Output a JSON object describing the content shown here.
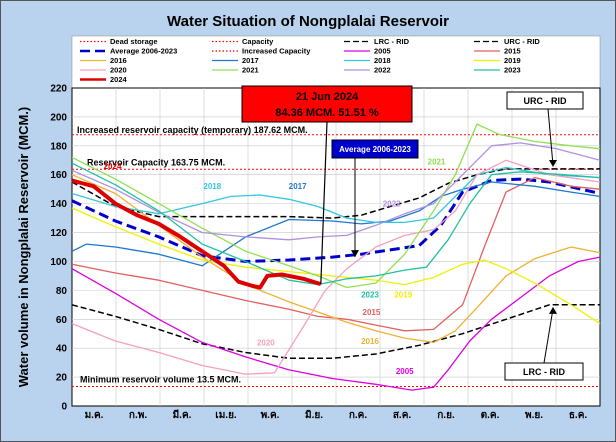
{
  "chart_data": {
    "type": "line",
    "title": "Water Situation of Nongplalai Reservoir",
    "xlabel": "",
    "ylabel": "Water volume in Nongplalai Reservoir (MCM.)",
    "ylim": [
      0,
      220
    ],
    "yticks": [
      0,
      20,
      40,
      60,
      80,
      100,
      120,
      140,
      160,
      180,
      200,
      220
    ],
    "x_domain": [
      0,
      365
    ],
    "month_ticks": [
      "ม.ค.",
      "ก.พ.",
      "มี.ค.",
      "เม.ย.",
      "พ.ค.",
      "มิ.ย.",
      "ก.ค.",
      "ส.ค.",
      "ก.ย.",
      "ต.ค.",
      "พ.ย.",
      "ธ.ค."
    ],
    "grid": true,
    "legend_position": "top",
    "legend": [
      {
        "label": "Dead storage",
        "color": "#ff0000",
        "dash": "dot"
      },
      {
        "label": "Capacity",
        "color": "#ff0000",
        "dash": "dot"
      },
      {
        "label": "LRC - RID",
        "color": "#000000",
        "dash": "dash"
      },
      {
        "label": "URC - RID",
        "color": "#000000",
        "dash": "dash"
      },
      {
        "label": "Average 2006-2023",
        "color": "#0000cc",
        "dash": "longdash"
      },
      {
        "label": "Increased Capacity",
        "color": "#ff0000",
        "dash": "dot"
      },
      {
        "label": "2005",
        "color": "#dd00dd",
        "dash": "solid"
      },
      {
        "label": "2015",
        "color": "#e06060",
        "dash": "solid"
      },
      {
        "label": "2016",
        "color": "#f0b030",
        "dash": "solid"
      },
      {
        "label": "2017",
        "color": "#1f78d0",
        "dash": "solid"
      },
      {
        "label": "2018",
        "color": "#30c8e0",
        "dash": "solid"
      },
      {
        "label": "2019",
        "color": "#f0f000",
        "dash": "solid"
      },
      {
        "label": "2020",
        "color": "#f4a0c0",
        "dash": "solid"
      },
      {
        "label": "2021",
        "color": "#90e050",
        "dash": "solid"
      },
      {
        "label": "2022",
        "color": "#b090e0",
        "dash": "solid"
      },
      {
        "label": "2023",
        "color": "#20c0a0",
        "dash": "solid"
      },
      {
        "label": "2024",
        "color": "#dd0000",
        "dash": "solid"
      }
    ],
    "reference_lines": [
      {
        "name": "dead_storage",
        "value": 13.5,
        "color": "#ff0000",
        "label": "Minimum reservoir volume 13.5 MCM."
      },
      {
        "name": "capacity",
        "value": 163.75,
        "color": "#ff0000",
        "label": "Reservoir Capacity 163.75 MCM."
      },
      {
        "name": "increased_capacity",
        "value": 187.62,
        "color": "#ff0000",
        "label": "Increased reservoir capacity (temporary) 187.62 MCM."
      }
    ],
    "series": [
      {
        "name": "URC - RID",
        "color": "#000000",
        "dash": "dash",
        "width": 1.5,
        "points": [
          [
            0,
            155
          ],
          [
            30,
            138
          ],
          [
            60,
            131
          ],
          [
            90,
            131
          ],
          [
            120,
            131
          ],
          [
            150,
            131
          ],
          [
            180,
            130
          ],
          [
            200,
            132
          ],
          [
            220,
            138
          ],
          [
            240,
            144
          ],
          [
            260,
            154
          ],
          [
            280,
            160
          ],
          [
            300,
            164
          ],
          [
            330,
            164
          ],
          [
            365,
            164
          ]
        ]
      },
      {
        "name": "LRC - RID",
        "color": "#000000",
        "dash": "dash",
        "width": 1.5,
        "points": [
          [
            0,
            70
          ],
          [
            30,
            62
          ],
          [
            60,
            53
          ],
          [
            90,
            43
          ],
          [
            120,
            37
          ],
          [
            150,
            33
          ],
          [
            180,
            33
          ],
          [
            210,
            36
          ],
          [
            240,
            42
          ],
          [
            270,
            50
          ],
          [
            300,
            60
          ],
          [
            330,
            70
          ],
          [
            365,
            70
          ]
        ]
      },
      {
        "name": "Average 2006-2023",
        "color": "#0000cc",
        "dash": "longdash",
        "width": 3,
        "points": [
          [
            0,
            142
          ],
          [
            30,
            128
          ],
          [
            60,
            117
          ],
          [
            90,
            104
          ],
          [
            120,
            100
          ],
          [
            150,
            101
          ],
          [
            180,
            103
          ],
          [
            200,
            105
          ],
          [
            220,
            108
          ],
          [
            240,
            111
          ],
          [
            255,
            125
          ],
          [
            270,
            148
          ],
          [
            290,
            156
          ],
          [
            310,
            157
          ],
          [
            330,
            155
          ],
          [
            365,
            147
          ]
        ]
      },
      {
        "name": "2005",
        "color": "#dd00dd",
        "dash": "solid",
        "width": 1.3,
        "points": [
          [
            0,
            95
          ],
          [
            30,
            78
          ],
          [
            60,
            60
          ],
          [
            90,
            44
          ],
          [
            120,
            34
          ],
          [
            150,
            25
          ],
          [
            180,
            19
          ],
          [
            210,
            15
          ],
          [
            235,
            11
          ],
          [
            250,
            13
          ],
          [
            260,
            25
          ],
          [
            275,
            45
          ],
          [
            290,
            60
          ],
          [
            310,
            75
          ],
          [
            330,
            90
          ],
          [
            350,
            100
          ],
          [
            365,
            103
          ]
        ]
      },
      {
        "name": "2015",
        "color": "#e06060",
        "dash": "solid",
        "width": 1.3,
        "points": [
          [
            0,
            98
          ],
          [
            30,
            92
          ],
          [
            60,
            87
          ],
          [
            90,
            80
          ],
          [
            120,
            73
          ],
          [
            150,
            67
          ],
          [
            170,
            62
          ],
          [
            190,
            60
          ],
          [
            210,
            56
          ],
          [
            230,
            52
          ],
          [
            250,
            53
          ],
          [
            270,
            70
          ],
          [
            285,
            110
          ],
          [
            300,
            148
          ],
          [
            320,
            158
          ],
          [
            345,
            152
          ],
          [
            365,
            150
          ]
        ]
      },
      {
        "name": "2016",
        "color": "#f0b030",
        "dash": "solid",
        "width": 1.3,
        "points": [
          [
            0,
            160
          ],
          [
            30,
            147
          ],
          [
            60,
            125
          ],
          [
            90,
            103
          ],
          [
            120,
            84
          ],
          [
            150,
            72
          ],
          [
            170,
            65
          ],
          [
            190,
            58
          ],
          [
            210,
            52
          ],
          [
            230,
            47
          ],
          [
            250,
            44
          ],
          [
            265,
            52
          ],
          [
            280,
            68
          ],
          [
            300,
            90
          ],
          [
            320,
            102
          ],
          [
            345,
            110
          ],
          [
            365,
            106
          ]
        ]
      },
      {
        "name": "2017",
        "color": "#1f78d0",
        "dash": "solid",
        "width": 1.3,
        "points": [
          [
            0,
            107
          ],
          [
            10,
            112
          ],
          [
            30,
            110
          ],
          [
            60,
            105
          ],
          [
            90,
            97
          ],
          [
            120,
            117
          ],
          [
            150,
            129
          ],
          [
            180,
            128
          ],
          [
            200,
            126
          ],
          [
            220,
            128
          ],
          [
            240,
            135
          ],
          [
            255,
            145
          ],
          [
            270,
            150
          ],
          [
            290,
            155
          ],
          [
            320,
            152
          ],
          [
            345,
            148
          ],
          [
            365,
            145
          ]
        ]
      },
      {
        "name": "2018",
        "color": "#30c8e0",
        "dash": "solid",
        "width": 1.3,
        "points": [
          [
            0,
            147
          ],
          [
            30,
            138
          ],
          [
            60,
            133
          ],
          [
            90,
            140
          ],
          [
            110,
            145
          ],
          [
            130,
            146
          ],
          [
            150,
            143
          ],
          [
            170,
            138
          ],
          [
            190,
            130
          ],
          [
            210,
            127
          ],
          [
            230,
            127
          ],
          [
            250,
            130
          ],
          [
            265,
            145
          ],
          [
            280,
            160
          ],
          [
            300,
            165
          ],
          [
            330,
            160
          ],
          [
            365,
            158
          ]
        ]
      },
      {
        "name": "2019",
        "color": "#f0f000",
        "dash": "solid",
        "width": 1.3,
        "points": [
          [
            0,
            137
          ],
          [
            30,
            124
          ],
          [
            60,
            112
          ],
          [
            90,
            101
          ],
          [
            120,
            96
          ],
          [
            150,
            93
          ],
          [
            170,
            91
          ],
          [
            190,
            89
          ],
          [
            210,
            87
          ],
          [
            230,
            84
          ],
          [
            250,
            89
          ],
          [
            270,
            98
          ],
          [
            285,
            101
          ],
          [
            300,
            95
          ],
          [
            320,
            85
          ],
          [
            345,
            70
          ],
          [
            365,
            57
          ]
        ]
      },
      {
        "name": "2020",
        "color": "#f4a0c0",
        "dash": "solid",
        "width": 1.3,
        "points": [
          [
            0,
            57
          ],
          [
            30,
            45
          ],
          [
            60,
            37
          ],
          [
            90,
            28
          ],
          [
            120,
            22
          ],
          [
            140,
            23
          ],
          [
            160,
            55
          ],
          [
            175,
            80
          ],
          [
            190,
            95
          ],
          [
            210,
            110
          ],
          [
            230,
            118
          ],
          [
            250,
            122
          ],
          [
            265,
            135
          ],
          [
            280,
            160
          ],
          [
            300,
            170
          ],
          [
            330,
            160
          ],
          [
            365,
            155
          ]
        ]
      },
      {
        "name": "2021",
        "color": "#90e050",
        "dash": "solid",
        "width": 1.3,
        "points": [
          [
            0,
            172
          ],
          [
            30,
            157
          ],
          [
            60,
            140
          ],
          [
            90,
            123
          ],
          [
            120,
            107
          ],
          [
            150,
            97
          ],
          [
            170,
            90
          ],
          [
            190,
            82
          ],
          [
            210,
            85
          ],
          [
            230,
            105
          ],
          [
            250,
            135
          ],
          [
            265,
            160
          ],
          [
            280,
            195
          ],
          [
            295,
            188
          ],
          [
            320,
            183
          ],
          [
            345,
            180
          ],
          [
            365,
            178
          ]
        ]
      },
      {
        "name": "2022",
        "color": "#b090e0",
        "dash": "solid",
        "width": 1.3,
        "points": [
          [
            0,
            163
          ],
          [
            30,
            150
          ],
          [
            60,
            134
          ],
          [
            90,
            120
          ],
          [
            120,
            117
          ],
          [
            150,
            115
          ],
          [
            170,
            117
          ],
          [
            190,
            118
          ],
          [
            210,
            125
          ],
          [
            230,
            133
          ],
          [
            250,
            140
          ],
          [
            270,
            160
          ],
          [
            290,
            180
          ],
          [
            310,
            182
          ],
          [
            335,
            178
          ],
          [
            365,
            170
          ]
        ]
      },
      {
        "name": "2023",
        "color": "#20c0a0",
        "dash": "solid",
        "width": 1.3,
        "points": [
          [
            0,
            168
          ],
          [
            30,
            153
          ],
          [
            60,
            135
          ],
          [
            90,
            112
          ],
          [
            120,
            100
          ],
          [
            150,
            87
          ],
          [
            170,
            84
          ],
          [
            190,
            88
          ],
          [
            210,
            90
          ],
          [
            230,
            94
          ],
          [
            245,
            96
          ],
          [
            260,
            115
          ],
          [
            275,
            140
          ],
          [
            290,
            160
          ],
          [
            310,
            162
          ],
          [
            340,
            160
          ],
          [
            365,
            158
          ]
        ]
      },
      {
        "name": "2024",
        "color": "#dd0000",
        "dash": "solid",
        "width": 4,
        "points": [
          [
            0,
            156
          ],
          [
            15,
            152
          ],
          [
            30,
            140
          ],
          [
            45,
            132
          ],
          [
            60,
            126
          ],
          [
            75,
            117
          ],
          [
            90,
            107
          ],
          [
            105,
            97
          ],
          [
            115,
            86
          ],
          [
            125,
            83
          ],
          [
            130,
            82
          ],
          [
            135,
            90
          ],
          [
            145,
            91
          ],
          [
            160,
            88
          ],
          [
            172,
            84.36
          ]
        ]
      }
    ],
    "series_labels": [
      {
        "text": "2024",
        "color": "#dd0000",
        "x": 28,
        "y": 164
      },
      {
        "text": "2018",
        "color": "#30c8e0",
        "x": 97,
        "y": 150
      },
      {
        "text": "2017",
        "color": "#1f78d0",
        "x": 156,
        "y": 150
      },
      {
        "text": "2022",
        "color": "#b090e0",
        "x": 221,
        "y": 138
      },
      {
        "text": "2021",
        "color": "#90e050",
        "x": 252,
        "y": 167
      },
      {
        "text": "2023",
        "color": "#20c0a0",
        "x": 206,
        "y": 75
      },
      {
        "text": "2019",
        "color": "#f0f000",
        "x": 229,
        "y": 75
      },
      {
        "text": "2015",
        "color": "#e06060",
        "x": 207,
        "y": 63
      },
      {
        "text": "2016",
        "color": "#f0b030",
        "x": 206,
        "y": 43
      },
      {
        "text": "2020",
        "color": "#f4a0c0",
        "x": 134,
        "y": 42
      },
      {
        "text": "2005",
        "color": "#dd00dd",
        "x": 230,
        "y": 22
      }
    ],
    "current": {
      "date_label": "21 Jun 2024",
      "value_label": "84.36 MCM. 51.51 %",
      "value": 84.36,
      "x": 172
    },
    "average_label": "Average 2006-2023",
    "urc_label": "URC - RID",
    "lrc_label": "LRC - RID"
  }
}
